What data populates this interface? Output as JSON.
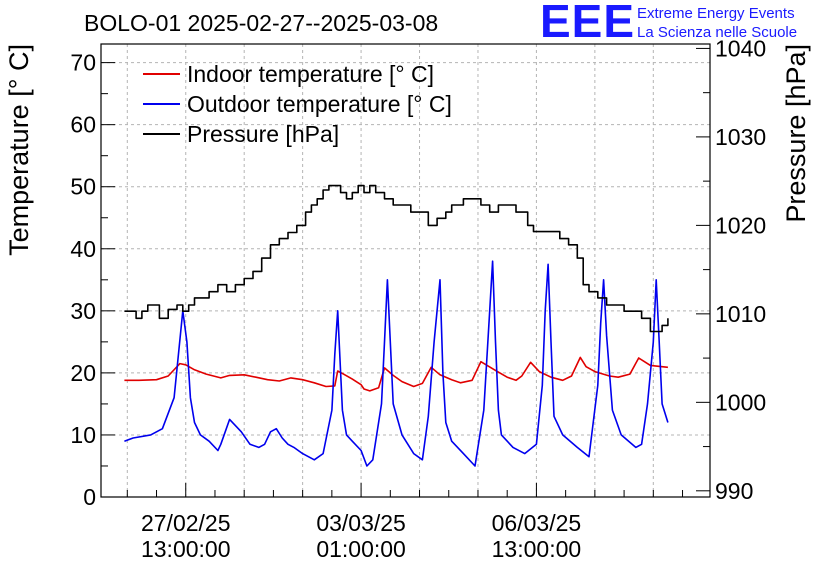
{
  "header": {
    "title": "BOLO-01 2025-02-27--2025-03-08",
    "logo_mark": "EEE",
    "logo_line1": "Extreme Energy Events",
    "logo_line2": "La Scienza nelle Scuole"
  },
  "chart_data": {
    "type": "line",
    "title": "BOLO-01 2025-02-27--2025-03-08",
    "ylabel": "Temperature [° C]",
    "y2label": "Pressure [hPa]",
    "ylim": [
      0,
      73
    ],
    "y2lim": [
      989.3,
      1040.5
    ],
    "xlim": [
      -1.45,
      8.97
    ],
    "x_units": "days since 2025-02-27 13:00:00",
    "yticks": [
      0,
      10,
      20,
      30,
      40,
      50,
      60,
      70
    ],
    "y2ticks": [
      990,
      1000,
      1010,
      1020,
      1030,
      1040
    ],
    "xticks": [
      {
        "x": 0,
        "line1": "27/02/25",
        "line2": "13:00:00"
      },
      {
        "x": 3,
        "line1": "03/03/25",
        "line2": "01:00:00"
      },
      {
        "x": 6,
        "line1": "06/03/25",
        "line2": "13:00:00"
      }
    ],
    "grid": true,
    "legend_position": "top-left",
    "colors": {
      "indoor": "#e00000",
      "outdoor": "#0000ee",
      "pressure": "#000000",
      "grid": "#b4b4b4"
    },
    "series": [
      {
        "name": "Indoor temperature [° C]",
        "axis": "left",
        "color": "#e00000",
        "x": [
          -1.05,
          -0.8,
          -0.5,
          -0.3,
          -0.1,
          0.0,
          0.15,
          0.35,
          0.6,
          0.75,
          1.0,
          1.2,
          1.4,
          1.6,
          1.8,
          2.0,
          2.2,
          2.4,
          2.55,
          2.6,
          2.7,
          2.85,
          3.0,
          3.05,
          3.15,
          3.3,
          3.4,
          3.55,
          3.7,
          3.9,
          4.05,
          4.2,
          4.35,
          4.55,
          4.7,
          4.9,
          5.05,
          5.3,
          5.5,
          5.65,
          5.75,
          5.9,
          6.05,
          6.25,
          6.45,
          6.6,
          6.75,
          6.85,
          7.0,
          7.25,
          7.4,
          7.6,
          7.75,
          7.85,
          7.95,
          8.05,
          8.15,
          8.25
        ],
        "values": [
          18.8,
          18.8,
          18.9,
          19.5,
          21.5,
          21.3,
          20.5,
          19.8,
          19.2,
          19.6,
          19.7,
          19.3,
          18.9,
          18.7,
          19.2,
          18.9,
          18.4,
          17.8,
          17.9,
          20.3,
          19.8,
          19.0,
          18.1,
          17.4,
          17.1,
          17.6,
          20.8,
          19.6,
          18.6,
          17.8,
          18.3,
          20.9,
          19.7,
          18.9,
          18.4,
          18.8,
          21.8,
          20.4,
          19.3,
          18.8,
          19.5,
          21.7,
          20.2,
          19.3,
          18.8,
          19.5,
          22.5,
          21.0,
          20.2,
          19.5,
          19.3,
          19.8,
          22.4,
          21.8,
          21.2,
          21.1,
          21.0,
          20.9
        ],
        "points": null
      },
      {
        "name": "Outdoor temperature [° C]",
        "axis": "left",
        "color": "#0000ee",
        "x": [
          -1.05,
          -0.9,
          -0.6,
          -0.4,
          -0.2,
          -0.05,
          0.02,
          0.08,
          0.15,
          0.25,
          0.4,
          0.55,
          0.6,
          0.75,
          0.85,
          0.95,
          1.1,
          1.25,
          1.35,
          1.45,
          1.55,
          1.65,
          1.75,
          1.85,
          2.0,
          2.2,
          2.35,
          2.5,
          2.55,
          2.6,
          2.68,
          2.75,
          2.85,
          3.0,
          3.1,
          3.2,
          3.35,
          3.4,
          3.45,
          3.55,
          3.7,
          3.9,
          4.05,
          4.15,
          4.25,
          4.35,
          4.4,
          4.45,
          4.55,
          4.75,
          4.95,
          5.1,
          5.2,
          5.25,
          5.3,
          5.35,
          5.4,
          5.6,
          5.8,
          6.0,
          6.1,
          6.15,
          6.2,
          6.25,
          6.3,
          6.45,
          6.7,
          6.9,
          7.05,
          7.1,
          7.15,
          7.2,
          7.3,
          7.45,
          7.7,
          7.8,
          7.9,
          8.0,
          8.05,
          8.1,
          8.15,
          8.25
        ],
        "values": [
          9.0,
          9.5,
          10.0,
          11.0,
          16.0,
          30.0,
          25.0,
          16.0,
          12.0,
          10.0,
          9.0,
          7.5,
          8.5,
          12.5,
          11.5,
          10.5,
          8.5,
          8.0,
          8.5,
          10.5,
          11.0,
          9.5,
          8.5,
          8.0,
          7.0,
          6.0,
          7.0,
          14.0,
          23.0,
          30.0,
          14.0,
          10.0,
          9.0,
          7.5,
          5.0,
          6.0,
          15.0,
          25.0,
          35.0,
          15.0,
          10.0,
          7.0,
          6.0,
          13.0,
          25.0,
          35.0,
          20.0,
          12.0,
          9.0,
          7.0,
          5.0,
          14.0,
          30.0,
          38.0,
          25.0,
          14.0,
          10.0,
          8.0,
          7.0,
          8.5,
          18.0,
          30.0,
          37.5,
          25.0,
          13.0,
          10.0,
          8.0,
          6.5,
          18.0,
          28.0,
          35.0,
          26.0,
          14.0,
          10.0,
          8.0,
          8.5,
          15.0,
          25.0,
          35.0,
          25.0,
          15.0,
          12.0
        ],
        "points": null
      },
      {
        "name": "Pressure [hPa]",
        "axis": "right",
        "color": "#000000",
        "x": [
          -1.05,
          -0.95,
          -0.85,
          -0.75,
          -0.65,
          -0.55,
          -0.45,
          -0.3,
          -0.15,
          -0.05,
          0.05,
          0.15,
          0.25,
          0.4,
          0.55,
          0.7,
          0.85,
          1.0,
          1.15,
          1.3,
          1.45,
          1.6,
          1.75,
          1.9,
          2.05,
          2.15,
          2.25,
          2.35,
          2.45,
          2.55,
          2.65,
          2.75,
          2.85,
          2.95,
          3.05,
          3.15,
          3.25,
          3.4,
          3.55,
          3.7,
          3.85,
          4.0,
          4.15,
          4.3,
          4.45,
          4.55,
          4.65,
          4.75,
          4.9,
          5.05,
          5.2,
          5.35,
          5.5,
          5.65,
          5.75,
          5.85,
          5.95,
          6.1,
          6.25,
          6.4,
          6.55,
          6.7,
          6.8,
          6.9,
          7.05,
          7.2,
          7.35,
          7.5,
          7.65,
          7.8,
          7.95,
          8.05,
          8.15,
          8.25
        ],
        "values": [
          1010.3,
          1010.3,
          1009.5,
          1010.3,
          1011.0,
          1011.0,
          1009.5,
          1010.5,
          1011.0,
          1010.3,
          1011.0,
          1011.8,
          1011.8,
          1012.5,
          1013.3,
          1012.5,
          1013.3,
          1014.0,
          1014.8,
          1016.3,
          1017.8,
          1018.5,
          1019.2,
          1020.0,
          1021.5,
          1022.3,
          1023.0,
          1024.0,
          1024.5,
          1024.5,
          1023.7,
          1023.0,
          1023.7,
          1024.5,
          1023.7,
          1024.5,
          1023.7,
          1023.0,
          1022.3,
          1022.3,
          1021.5,
          1021.5,
          1020.0,
          1020.8,
          1021.5,
          1022.3,
          1022.3,
          1023.0,
          1023.0,
          1022.3,
          1021.5,
          1022.3,
          1022.3,
          1021.5,
          1021.5,
          1020.0,
          1019.3,
          1019.3,
          1019.3,
          1018.5,
          1017.8,
          1016.3,
          1013.3,
          1012.5,
          1011.8,
          1011.0,
          1011.0,
          1010.3,
          1010.3,
          1009.5,
          1008.0,
          1008.0,
          1008.7,
          1009.5
        ],
        "points": null
      }
    ]
  }
}
